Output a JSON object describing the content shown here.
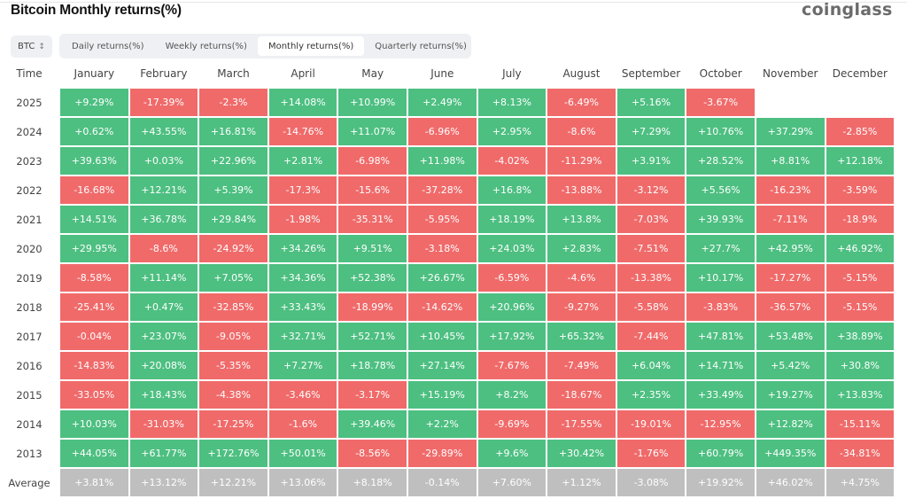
{
  "header": {
    "title": "Bitcoin Monthly returns(%)",
    "logo_text": "coinglass"
  },
  "controls": {
    "coin_select": {
      "value": "BTC",
      "icon": "up-down-chevron-icon"
    },
    "tabs": [
      {
        "label": "Daily returns(%)",
        "active": false
      },
      {
        "label": "Weekly returns(%)",
        "active": false
      },
      {
        "label": "Monthly returns(%)",
        "active": true
      },
      {
        "label": "Quarterly returns(%)",
        "active": false
      }
    ]
  },
  "colors": {
    "positive": "#4dbf81",
    "negative": "#f06a6a",
    "average": "#bfbfbf"
  },
  "table": {
    "time_header": "Time",
    "months": [
      "January",
      "February",
      "March",
      "April",
      "May",
      "June",
      "July",
      "August",
      "September",
      "October",
      "November",
      "December"
    ],
    "rows": [
      {
        "year": "2025",
        "values": [
          "+9.29%",
          "-17.39%",
          "-2.3%",
          "+14.08%",
          "+10.99%",
          "+2.49%",
          "+8.13%",
          "-6.49%",
          "+5.16%",
          "-3.67%",
          "",
          ""
        ]
      },
      {
        "year": "2024",
        "values": [
          "+0.62%",
          "+43.55%",
          "+16.81%",
          "-14.76%",
          "+11.07%",
          "-6.96%",
          "+2.95%",
          "-8.6%",
          "+7.29%",
          "+10.76%",
          "+37.29%",
          "-2.85%"
        ]
      },
      {
        "year": "2023",
        "values": [
          "+39.63%",
          "+0.03%",
          "+22.96%",
          "+2.81%",
          "-6.98%",
          "+11.98%",
          "-4.02%",
          "-11.29%",
          "+3.91%",
          "+28.52%",
          "+8.81%",
          "+12.18%"
        ]
      },
      {
        "year": "2022",
        "values": [
          "-16.68%",
          "+12.21%",
          "+5.39%",
          "-17.3%",
          "-15.6%",
          "-37.28%",
          "+16.8%",
          "-13.88%",
          "-3.12%",
          "+5.56%",
          "-16.23%",
          "-3.59%"
        ]
      },
      {
        "year": "2021",
        "values": [
          "+14.51%",
          "+36.78%",
          "+29.84%",
          "-1.98%",
          "-35.31%",
          "-5.95%",
          "+18.19%",
          "+13.8%",
          "-7.03%",
          "+39.93%",
          "-7.11%",
          "-18.9%"
        ]
      },
      {
        "year": "2020",
        "values": [
          "+29.95%",
          "-8.6%",
          "-24.92%",
          "+34.26%",
          "+9.51%",
          "-3.18%",
          "+24.03%",
          "+2.83%",
          "-7.51%",
          "+27.7%",
          "+42.95%",
          "+46.92%"
        ]
      },
      {
        "year": "2019",
        "values": [
          "-8.58%",
          "+11.14%",
          "+7.05%",
          "+34.36%",
          "+52.38%",
          "+26.67%",
          "-6.59%",
          "-4.6%",
          "-13.38%",
          "+10.17%",
          "-17.27%",
          "-5.15%"
        ]
      },
      {
        "year": "2018",
        "values": [
          "-25.41%",
          "+0.47%",
          "-32.85%",
          "+33.43%",
          "-18.99%",
          "-14.62%",
          "+20.96%",
          "-9.27%",
          "-5.58%",
          "-3.83%",
          "-36.57%",
          "-5.15%"
        ]
      },
      {
        "year": "2017",
        "values": [
          "-0.04%",
          "+23.07%",
          "-9.05%",
          "+32.71%",
          "+52.71%",
          "+10.45%",
          "+17.92%",
          "+65.32%",
          "-7.44%",
          "+47.81%",
          "+53.48%",
          "+38.89%"
        ]
      },
      {
        "year": "2016",
        "values": [
          "-14.83%",
          "+20.08%",
          "-5.35%",
          "+7.27%",
          "+18.78%",
          "+27.14%",
          "-7.67%",
          "-7.49%",
          "+6.04%",
          "+14.71%",
          "+5.42%",
          "+30.8%"
        ]
      },
      {
        "year": "2015",
        "values": [
          "-33.05%",
          "+18.43%",
          "-4.38%",
          "-3.46%",
          "-3.17%",
          "+15.19%",
          "+8.2%",
          "-18.67%",
          "+2.35%",
          "+33.49%",
          "+19.27%",
          "+13.83%"
        ]
      },
      {
        "year": "2014",
        "values": [
          "+10.03%",
          "-31.03%",
          "-17.25%",
          "-1.6%",
          "+39.46%",
          "+2.2%",
          "-9.69%",
          "-17.55%",
          "-19.01%",
          "-12.95%",
          "+12.82%",
          "-15.11%"
        ]
      },
      {
        "year": "2013",
        "values": [
          "+44.05%",
          "+61.77%",
          "+172.76%",
          "+50.01%",
          "-8.56%",
          "-29.89%",
          "+9.6%",
          "+30.42%",
          "-1.76%",
          "+60.79%",
          "+449.35%",
          "-34.81%"
        ]
      }
    ],
    "average": {
      "label": "Average",
      "values": [
        "+3.81%",
        "+13.12%",
        "+12.21%",
        "+13.06%",
        "+8.18%",
        "-0.14%",
        "+7.60%",
        "+1.12%",
        "-3.08%",
        "+19.92%",
        "+46.02%",
        "+4.75%"
      ]
    }
  }
}
